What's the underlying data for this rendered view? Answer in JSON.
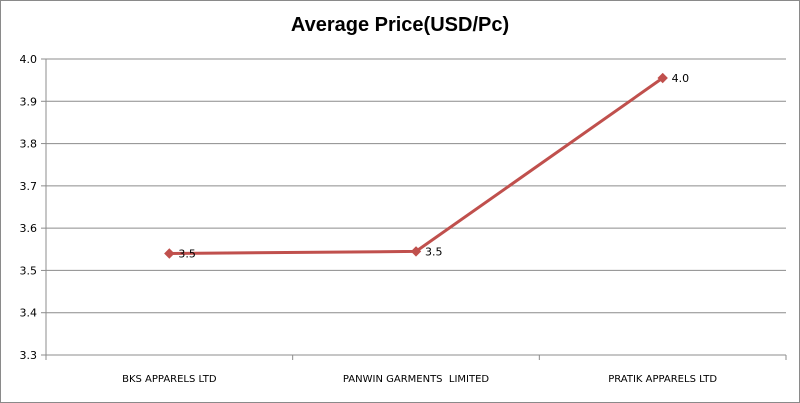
{
  "chart_data": {
    "type": "line",
    "title": "Average Price(USD/Pc)",
    "xlabel": "",
    "ylabel": "",
    "categories": [
      "BKS APPARELS LTD",
      "PANWIN GARMENTS  LIMITED",
      "PRATIK APPARELS LTD"
    ],
    "series": [
      {
        "values": [
          3.54,
          3.545,
          3.955
        ],
        "data_labels": [
          "3.5",
          "3.5",
          "4.0"
        ],
        "color": "#c0504d"
      }
    ],
    "ylim": [
      3.3,
      4.0
    ],
    "yticks": [
      3.3,
      3.4,
      3.5,
      3.6,
      3.7,
      3.8,
      3.9,
      4.0
    ],
    "ytick_labels": [
      "3.3",
      "3.4",
      "3.5",
      "3.6",
      "3.7",
      "3.8",
      "3.9",
      "4.0"
    ],
    "grid": true,
    "legend": "none",
    "marker": "diamond"
  }
}
